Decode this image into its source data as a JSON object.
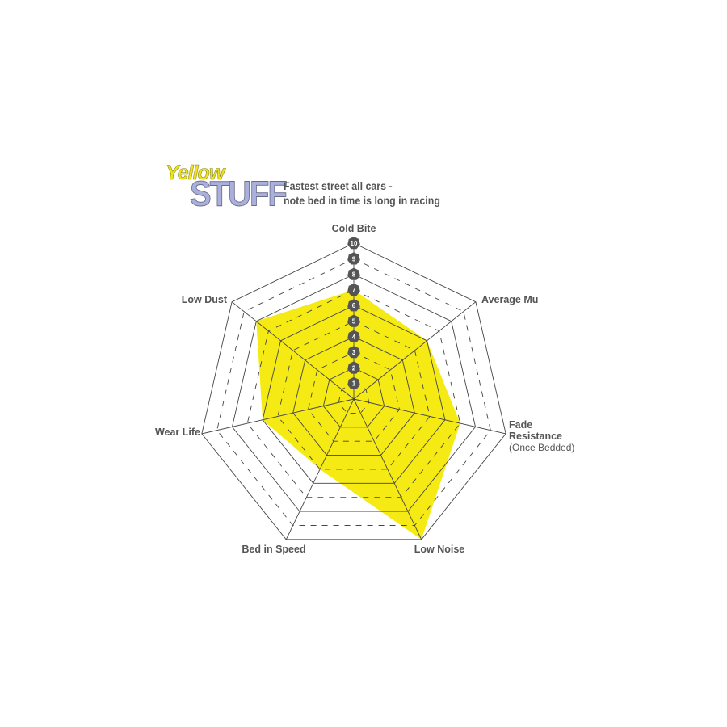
{
  "logo": {
    "line1": "Yellow",
    "line2": "STUFF"
  },
  "subtitle": {
    "line1": "Fastest street all cars -",
    "line2": "note bed in time is long in racing"
  },
  "colors": {
    "fill": "#f5ea14",
    "grid": "#444444",
    "badge": "#555555",
    "text": "#555555"
  },
  "chart_data": {
    "type": "radar",
    "axes": [
      "Cold Bite",
      "Average Mu",
      "Fade Resistance",
      "Low Noise",
      "Bed in Speed",
      "Wear Life",
      "Low Dust"
    ],
    "axis_sublabels": {
      "Fade Resistance": "(Once Bedded)"
    },
    "values": [
      7,
      6,
      7,
      10,
      5,
      6,
      8
    ],
    "scale": {
      "min": 0,
      "max": 10,
      "ticks": [
        1,
        2,
        3,
        4,
        5,
        6,
        7,
        8,
        9,
        10
      ]
    },
    "grid": true
  }
}
